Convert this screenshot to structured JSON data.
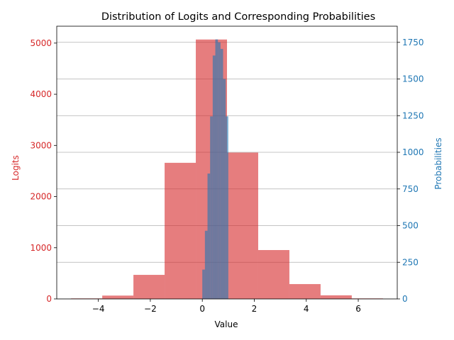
{
  "chart_data": {
    "type": "bar",
    "title": "Distribution of Logits and Corresponding Probabilities",
    "xlabel": "Value",
    "ylabel_left": "Logits",
    "ylabel_right": "Probabilities",
    "xlim": [
      -5.6,
      7.5
    ],
    "ylim_left": [
      0,
      5330
    ],
    "ylim_right": [
      0,
      1860
    ],
    "x_ticks": [
      {
        "value": -4,
        "label": "−4"
      },
      {
        "value": -2,
        "label": "−2"
      },
      {
        "value": 0,
        "label": "0"
      },
      {
        "value": 2,
        "label": "2"
      },
      {
        "value": 4,
        "label": "4"
      },
      {
        "value": 6,
        "label": "6"
      }
    ],
    "y_left_ticks": [
      {
        "value": 0,
        "label": "0"
      },
      {
        "value": 1000,
        "label": "1000"
      },
      {
        "value": 2000,
        "label": "2000"
      },
      {
        "value": 3000,
        "label": "3000"
      },
      {
        "value": 4000,
        "label": "4000"
      },
      {
        "value": 5000,
        "label": "5000"
      }
    ],
    "y_right_ticks": [
      {
        "value": 0,
        "label": "0"
      },
      {
        "value": 250,
        "label": "250"
      },
      {
        "value": 500,
        "label": "500"
      },
      {
        "value": 750,
        "label": "750"
      },
      {
        "value": 1000,
        "label": "1000"
      },
      {
        "value": 1250,
        "label": "1250"
      },
      {
        "value": 1500,
        "label": "1500"
      },
      {
        "value": 1750,
        "label": "1750"
      }
    ],
    "grid": "horizontal lines at right-axis ticks",
    "series": [
      {
        "axis": "left",
        "color": "#d62728",
        "alpha": 0.6,
        "bins": [
          {
            "x0": -5.05,
            "x1": -3.85,
            "value": 10
          },
          {
            "x0": -3.85,
            "x1": -2.65,
            "value": 65
          },
          {
            "x0": -2.65,
            "x1": -1.45,
            "value": 470
          },
          {
            "x0": -1.45,
            "x1": -0.25,
            "value": 2660
          },
          {
            "x0": -0.25,
            "x1": 0.95,
            "value": 5070
          },
          {
            "x0": 0.95,
            "x1": 2.15,
            "value": 2860
          },
          {
            "x0": 2.15,
            "x1": 3.35,
            "value": 955
          },
          {
            "x0": 3.35,
            "x1": 4.55,
            "value": 290
          },
          {
            "x0": 4.55,
            "x1": 5.75,
            "value": 70
          },
          {
            "x0": 5.75,
            "x1": 6.95,
            "value": 10
          }
        ]
      },
      {
        "axis": "right",
        "color": "#1f77b4",
        "alpha": 0.6,
        "bins": [
          {
            "x0": 0.0,
            "x1": 0.1,
            "value": 200
          },
          {
            "x0": 0.1,
            "x1": 0.2,
            "value": 465
          },
          {
            "x0": 0.2,
            "x1": 0.3,
            "value": 855
          },
          {
            "x0": 0.3,
            "x1": 0.4,
            "value": 1245
          },
          {
            "x0": 0.4,
            "x1": 0.5,
            "value": 1660
          },
          {
            "x0": 0.5,
            "x1": 0.6,
            "value": 1770
          },
          {
            "x0": 0.6,
            "x1": 0.7,
            "value": 1750
          },
          {
            "x0": 0.7,
            "x1": 0.8,
            "value": 1705
          },
          {
            "x0": 0.8,
            "x1": 0.9,
            "value": 1500
          },
          {
            "x0": 0.9,
            "x1": 1.0,
            "value": 1245
          }
        ]
      }
    ]
  }
}
